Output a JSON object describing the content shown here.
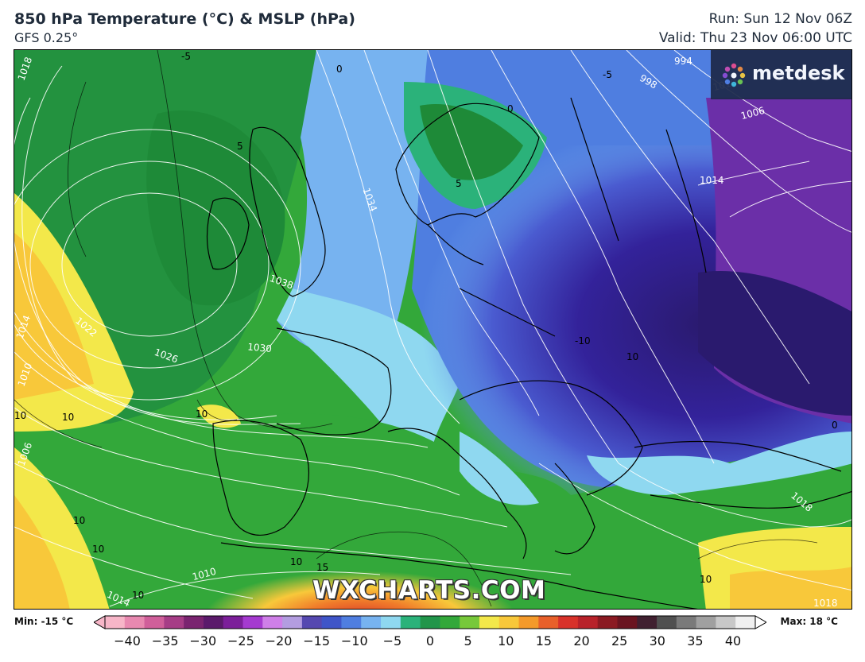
{
  "header": {
    "title": "850 hPa Temperature (°C) & MSLP (hPa)",
    "model": "GFS 0.25°",
    "run": "Run: Sun 12 Nov 06Z",
    "valid": "Valid: Thu 23 Nov 06:00 UTC"
  },
  "brand": {
    "name": "metdesk",
    "icon": "metdesk-dots-icon"
  },
  "watermark": "WXCHARTS.COM",
  "scale": {
    "min_label": "Min: -15 °C",
    "max_label": "Max: 18 °C",
    "ticks": [
      "−40",
      "−35",
      "−30",
      "−25",
      "−20",
      "−15",
      "−10",
      "−5",
      "0",
      "5",
      "10",
      "15",
      "20",
      "25",
      "30",
      "35",
      "40"
    ],
    "colors": [
      "#f7b6c8",
      "#e889b0",
      "#d05f9a",
      "#a63d86",
      "#7a2470",
      "#5b1a6b",
      "#7c1f9a",
      "#a53ad0",
      "#cf7fe8",
      "#b39de0",
      "#5548b0",
      "#3f55c8",
      "#4f7ee0",
      "#77b3f0",
      "#8fd8f0",
      "#2bb27a",
      "#21954a",
      "#33a83a",
      "#77c83a",
      "#f3e84a",
      "#f8c83a",
      "#f49a2a",
      "#e8602a",
      "#d8322a",
      "#b8222a",
      "#8b1a22",
      "#6a1420",
      "#402030",
      "#505050",
      "#7a7a7a",
      "#a0a0a0",
      "#c8c8c8",
      "#f0f0f0"
    ]
  },
  "isobar_labels": [
    "1018",
    "1014",
    "1010",
    "1006",
    "1022",
    "1026",
    "1030",
    "1034",
    "1038",
    "1014",
    "1006",
    "1010",
    "998",
    "994",
    "1010",
    "1014",
    "1018",
    "1018"
  ],
  "temp_labels": [
    "10",
    "10",
    "10",
    "10",
    "10",
    "10",
    "10",
    "10",
    "10",
    "0",
    "0",
    "5",
    "-5",
    "-5",
    "-10",
    "15",
    "5",
    "0"
  ]
}
